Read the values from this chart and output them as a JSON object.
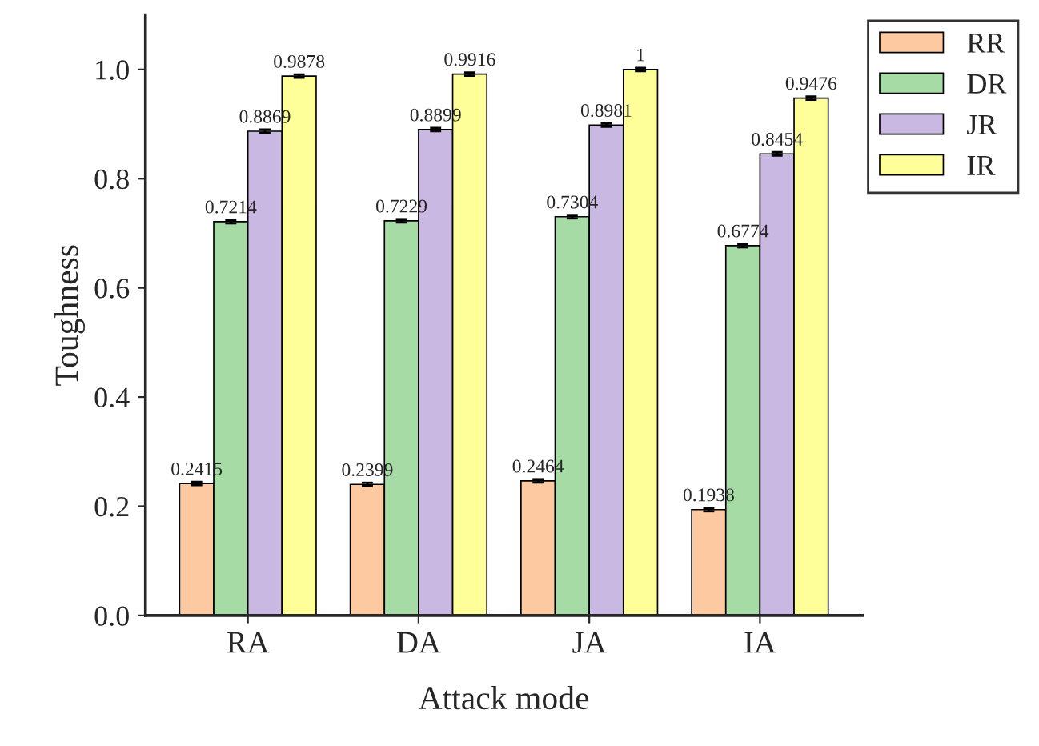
{
  "chart_data": {
    "type": "bar",
    "xlabel": "Attack mode",
    "ylabel": "Toughness",
    "categories": [
      "RA",
      "DA",
      "JA",
      "IA"
    ],
    "series": [
      {
        "name": "RR",
        "color": "#fcc9a0",
        "values": [
          0.2415,
          0.2399,
          0.2464,
          0.1938
        ],
        "errors": [
          0.003,
          0.003,
          0.003,
          0.003
        ]
      },
      {
        "name": "DR",
        "color": "#a6dba6",
        "values": [
          0.7214,
          0.7229,
          0.7304,
          0.6774
        ],
        "errors": [
          0.003,
          0.003,
          0.003,
          0.003
        ]
      },
      {
        "name": "JR",
        "color": "#c9b8e2",
        "values": [
          0.8869,
          0.8899,
          0.8981,
          0.8454
        ],
        "errors": [
          0.003,
          0.003,
          0.003,
          0.003
        ]
      },
      {
        "name": "IR",
        "color": "#ffff99",
        "values": [
          0.9878,
          0.9916,
          1,
          0.9476
        ],
        "errors": [
          0.003,
          0.003,
          0.003,
          0.003
        ]
      }
    ],
    "ylim": [
      0,
      1.1
    ],
    "yticks": [
      {
        "value": 0,
        "label": "0.0"
      },
      0.2,
      0.4,
      0.6,
      0.8,
      {
        "value": 1,
        "label": "1.0"
      }
    ],
    "data_labels": true,
    "legend": "top right",
    "grid": false
  }
}
